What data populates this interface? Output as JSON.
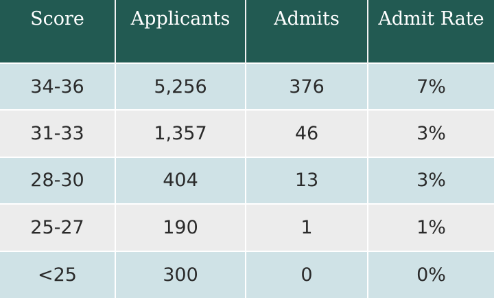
{
  "chart_data": {
    "type": "table",
    "columns": [
      "Score",
      "Applicants",
      "Admits",
      "Admit Rate"
    ],
    "rows": [
      [
        "34-36",
        "5,256",
        "376",
        "7%"
      ],
      [
        "31-33",
        "1,357",
        "46",
        "3%"
      ],
      [
        "28-30",
        "404",
        "13",
        "3%"
      ],
      [
        "25-27",
        "190",
        "1",
        "1%"
      ],
      [
        "<25",
        "300",
        "0",
        "0%"
      ]
    ],
    "colors": {
      "header_bg": "#225a52",
      "header_text": "#ffffff",
      "row_odd_bg": "#cfe2e6",
      "row_even_bg": "#ececec",
      "cell_text": "#2a2a2a"
    }
  }
}
